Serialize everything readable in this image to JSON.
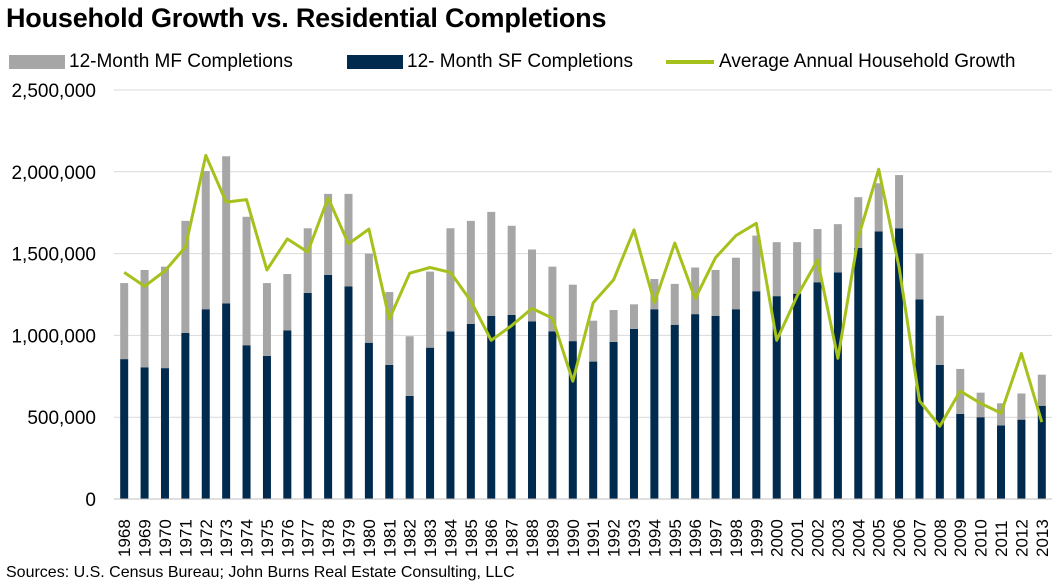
{
  "title": "Household Growth vs. Residential Completions",
  "source": "Sources: U.S. Census Bureau; John Burns Real Estate Consulting, LLC",
  "legend": [
    {
      "label": "12-Month MF Completions",
      "color": "#a6a6a6",
      "kind": "bar"
    },
    {
      "label": "12- Month SF Completions",
      "color": "#002a4e",
      "kind": "bar"
    },
    {
      "label": "Average Annual Household Growth",
      "color": "#a5c21c",
      "kind": "line"
    }
  ],
  "chart_data": {
    "type": "bar",
    "stacked": true,
    "title": "Household Growth vs. Residential Completions",
    "xlabel": "",
    "ylabel": "",
    "ylim": [
      0,
      2500000
    ],
    "yticks": [
      "0",
      "500,000",
      "1,000,000",
      "1,500,000",
      "2,000,000",
      "2,500,000"
    ],
    "grid": true,
    "legend_position": "top",
    "categories": [
      "1968",
      "1969",
      "1970",
      "1971",
      "1972",
      "1973",
      "1974",
      "1975",
      "1976",
      "1977",
      "1978",
      "1979",
      "1980",
      "1981",
      "1982",
      "1983",
      "1984",
      "1985",
      "1986",
      "1987",
      "1988",
      "1989",
      "1990",
      "1991",
      "1992",
      "1993",
      "1994",
      "1995",
      "1996",
      "1997",
      "1998",
      "1999",
      "2000",
      "2001",
      "2002",
      "2003",
      "2004",
      "2005",
      "2006",
      "2007",
      "2008",
      "2009",
      "2010",
      "2011",
      "2012",
      "2013"
    ],
    "series": [
      {
        "name": "12- Month SF Completions",
        "type": "bar",
        "color": "#002a4e",
        "values": [
          855000,
          805000,
          800000,
          1015000,
          1160000,
          1195000,
          940000,
          875000,
          1030000,
          1260000,
          1370000,
          1300000,
          955000,
          820000,
          630000,
          925000,
          1025000,
          1070000,
          1120000,
          1125000,
          1085000,
          1025000,
          965000,
          840000,
          960000,
          1040000,
          1160000,
          1065000,
          1130000,
          1120000,
          1160000,
          1270000,
          1240000,
          1255000,
          1325000,
          1385000,
          1535000,
          1635000,
          1655000,
          1220000,
          820000,
          520000,
          500000,
          450000,
          485000,
          570000
        ]
      },
      {
        "name": "12-Month MF Completions",
        "type": "bar",
        "color": "#a6a6a6",
        "values": [
          465000,
          595000,
          620000,
          685000,
          845000,
          900000,
          785000,
          445000,
          345000,
          395000,
          495000,
          565000,
          545000,
          445000,
          365000,
          465000,
          630000,
          630000,
          635000,
          545000,
          440000,
          395000,
          345000,
          250000,
          195000,
          150000,
          185000,
          250000,
          285000,
          280000,
          315000,
          340000,
          330000,
          315000,
          325000,
          295000,
          310000,
          295000,
          325000,
          280000,
          300000,
          275000,
          150000,
          135000,
          160000,
          190000
        ]
      },
      {
        "name": "Average Annual Household Growth",
        "type": "line",
        "color": "#a5c21c",
        "values": [
          1385000,
          1300000,
          1395000,
          1540000,
          2100000,
          1815000,
          1830000,
          1400000,
          1590000,
          1510000,
          1840000,
          1560000,
          1650000,
          1100000,
          1380000,
          1415000,
          1385000,
          1210000,
          970000,
          1060000,
          1165000,
          1105000,
          720000,
          1200000,
          1340000,
          1645000,
          1200000,
          1565000,
          1225000,
          1475000,
          1610000,
          1685000,
          970000,
          1240000,
          1460000,
          860000,
          1600000,
          2015000,
          1415000,
          600000,
          445000,
          660000,
          585000,
          525000,
          890000,
          470000
        ]
      }
    ]
  }
}
